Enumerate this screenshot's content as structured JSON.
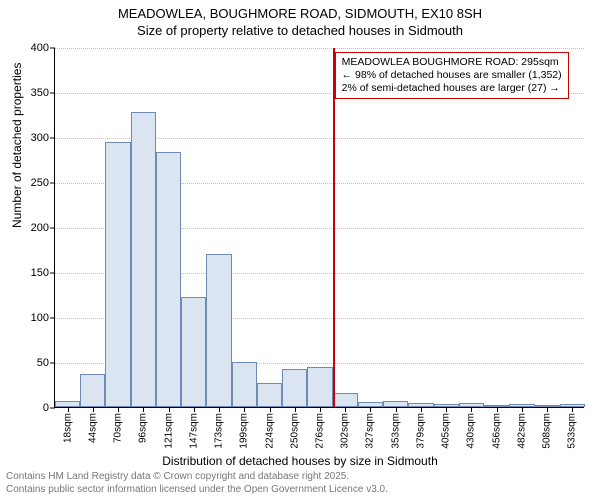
{
  "title": {
    "line1": "MEADOWLEA, BOUGHMORE ROAD, SIDMOUTH, EX10 8SH",
    "line2": "Size of property relative to detached houses in Sidmouth"
  },
  "chart": {
    "type": "histogram",
    "y_axis": {
      "label": "Number of detached properties",
      "ylim": [
        0,
        400
      ],
      "tick_step": 50,
      "tick_labels": [
        "0",
        "50",
        "100",
        "150",
        "200",
        "250",
        "300",
        "350",
        "400"
      ],
      "label_fontsize": 12,
      "tick_fontsize": 11
    },
    "x_axis": {
      "label": "Distribution of detached houses by size in Sidmouth",
      "tick_labels": [
        "18sqm",
        "44sqm",
        "70sqm",
        "96sqm",
        "121sqm",
        "147sqm",
        "173sqm",
        "199sqm",
        "224sqm",
        "250sqm",
        "276sqm",
        "302sqm",
        "327sqm",
        "353sqm",
        "379sqm",
        "405sqm",
        "430sqm",
        "456sqm",
        "482sqm",
        "508sqm",
        "533sqm"
      ],
      "label_fontsize": 12,
      "tick_fontsize": 10
    },
    "bars": {
      "values": [
        7,
        37,
        294,
        328,
        283,
        122,
        170,
        50,
        27,
        42,
        45,
        16,
        6,
        7,
        5,
        3,
        4,
        0,
        3,
        0,
        3
      ],
      "fill_color": "#dbe5f1",
      "border_color": "#6f8ab5",
      "bar_width_frac": 1.0
    },
    "grid_color": "#c0c0c0",
    "background_color": "#ffffff",
    "marker": {
      "bin_index": 11,
      "line_color": "#cc0000",
      "box_border": "#cc0000",
      "line1": "MEADOWLEA BOUGHMORE ROAD: 295sqm",
      "line2": "← 98% of detached houses are smaller (1,352)",
      "line3": "2% of semi-detached houses are larger (27) →"
    }
  },
  "footer": {
    "line1": "Contains HM Land Registry data © Crown copyright and database right 2025.",
    "line2": "Contains public sector information licensed under the Open Government Licence v3.0."
  }
}
